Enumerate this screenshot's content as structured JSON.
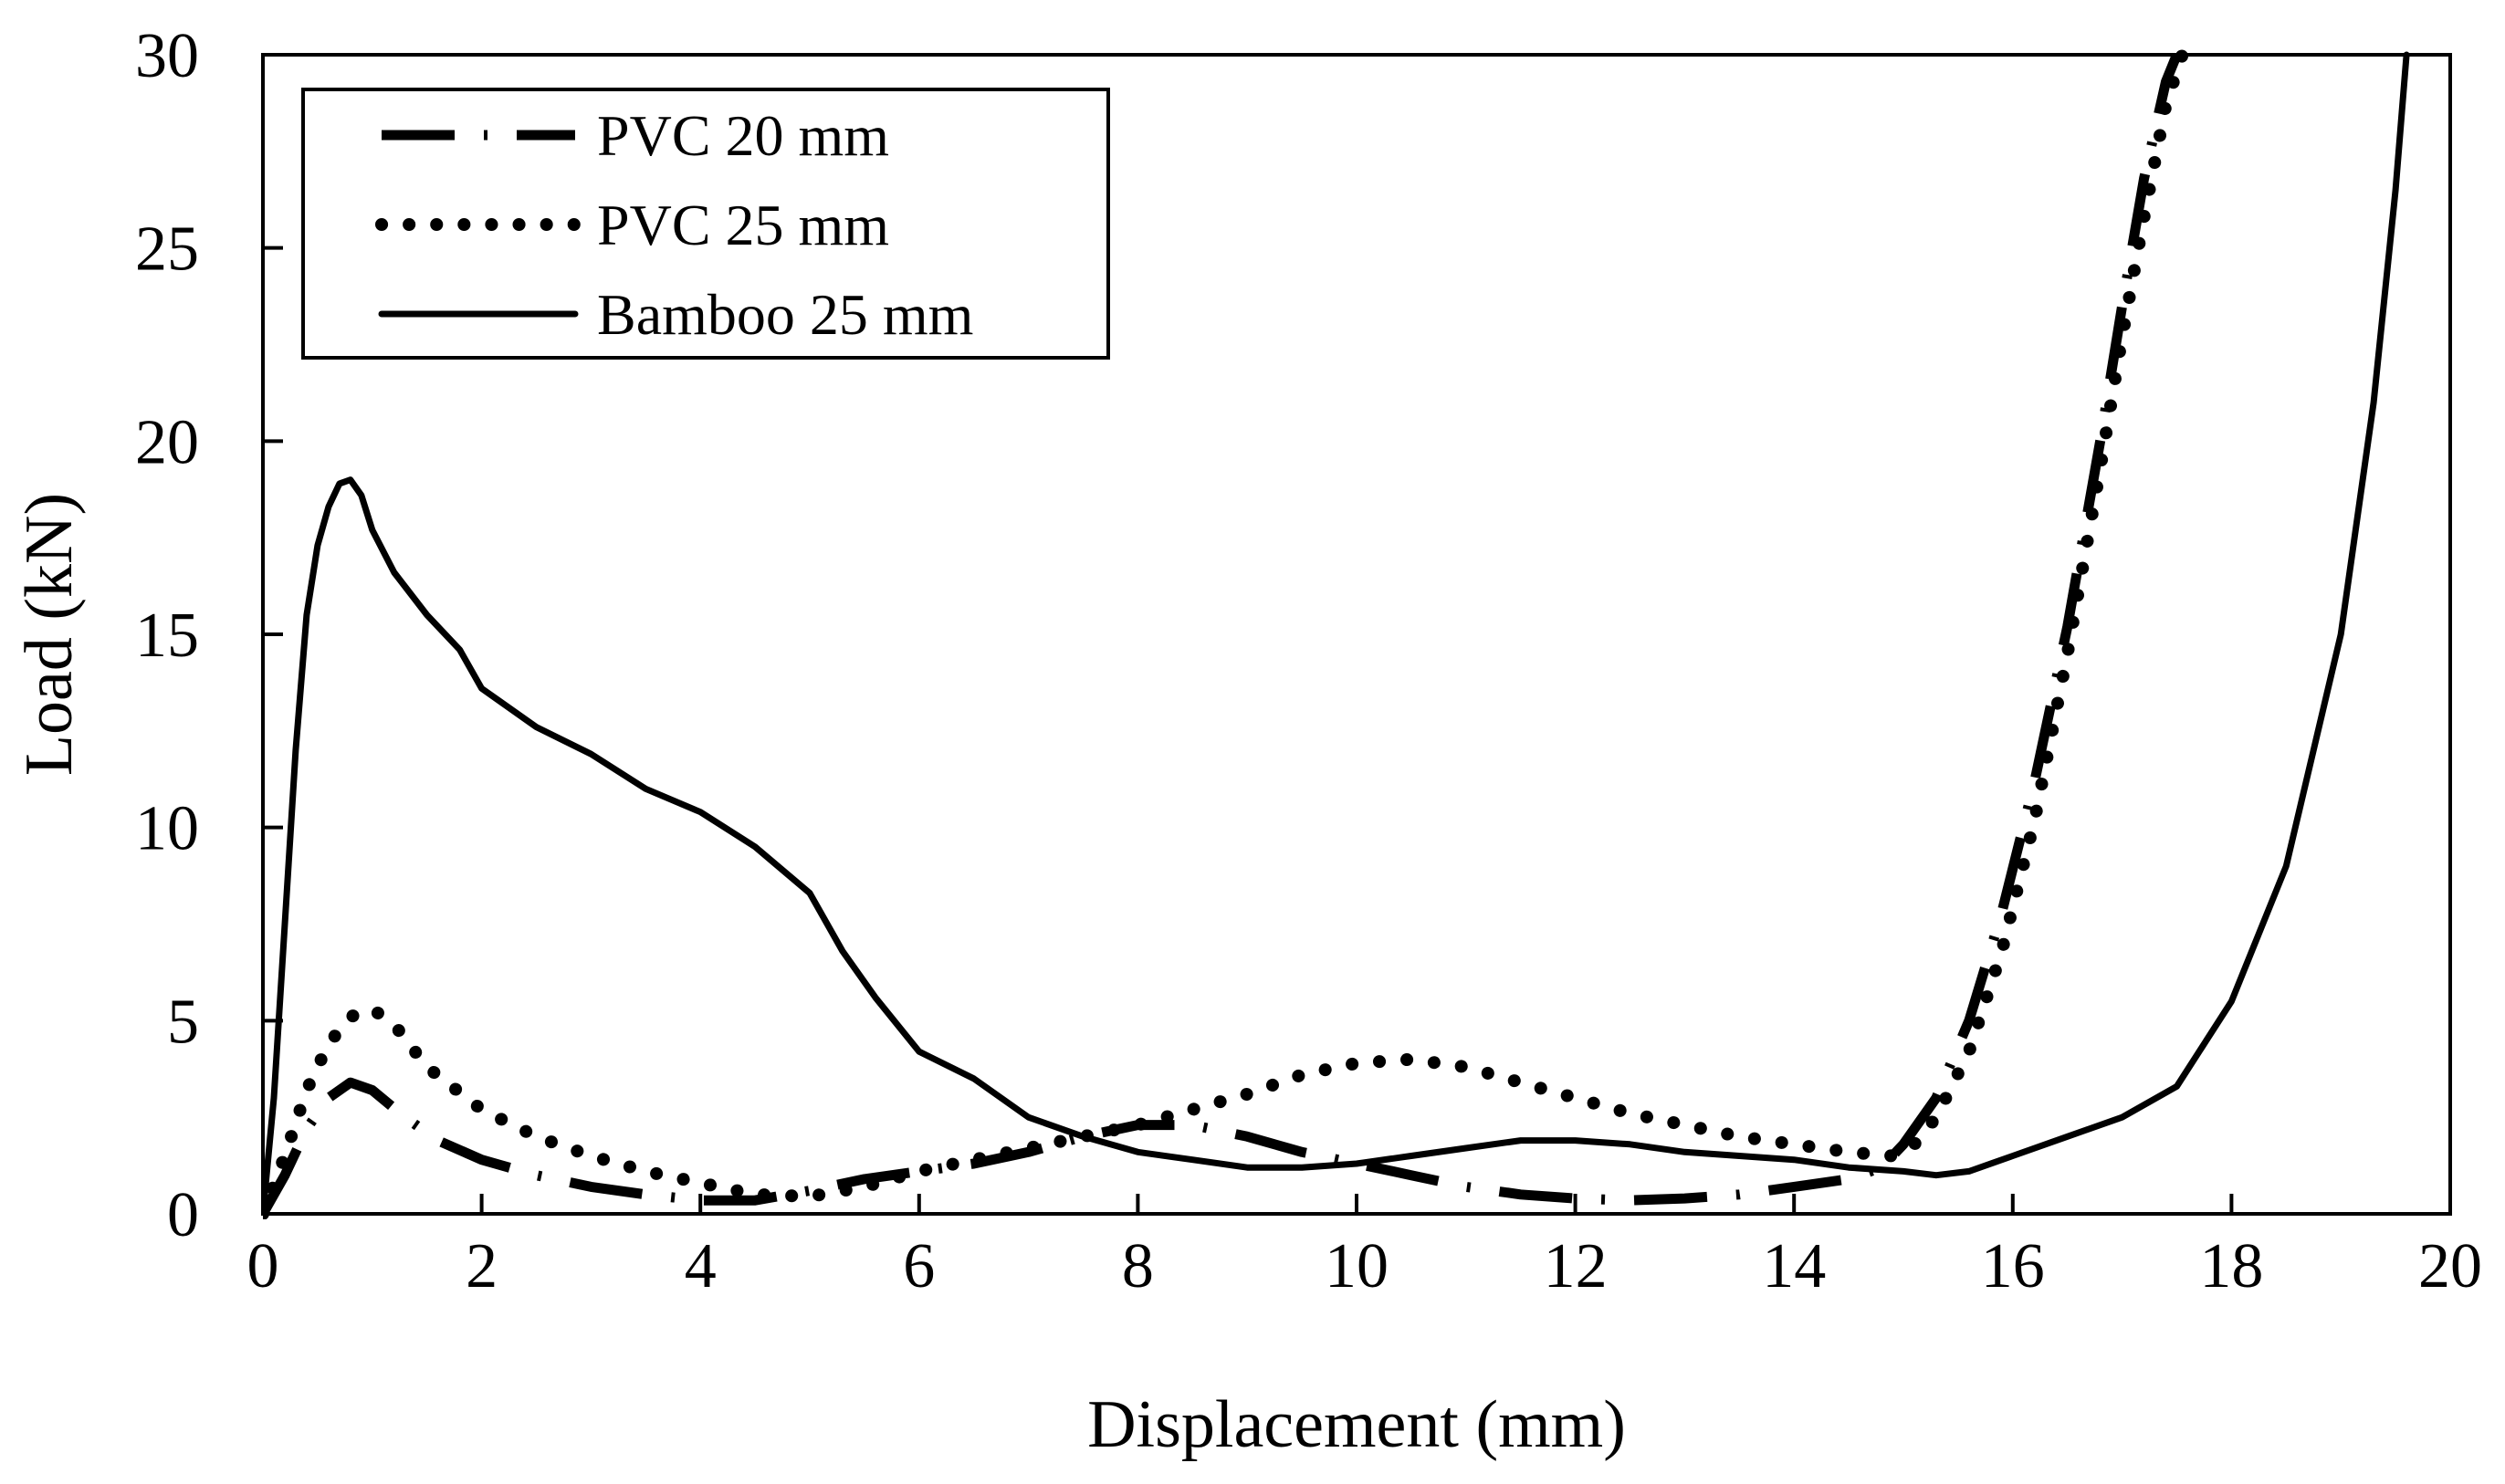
{
  "chart_data": {
    "type": "line",
    "title": "",
    "xlabel": "Displacement (mm)",
    "ylabel": "Load (kN)",
    "xlim": [
      0,
      20
    ],
    "ylim": [
      0,
      30
    ],
    "xticks": [
      0,
      2,
      4,
      6,
      8,
      10,
      12,
      14,
      16,
      18,
      20
    ],
    "yticks": [
      0,
      5,
      10,
      15,
      20,
      25,
      30
    ],
    "grid": false,
    "legend_position": "top-left",
    "series": [
      {
        "name": "PVC 20 mm",
        "style": "dash-dot",
        "x": [
          0,
          0.2,
          0.4,
          0.6,
          0.8,
          1.0,
          1.3,
          1.6,
          2.0,
          2.5,
          3.0,
          3.5,
          4.0,
          4.5,
          5.0,
          5.5,
          6.0,
          6.5,
          7.0,
          7.5,
          8.0,
          8.5,
          9.0,
          9.5,
          10.0,
          10.5,
          11.0,
          11.5,
          12.0,
          12.5,
          13.0,
          13.5,
          14.0,
          14.5,
          14.8,
          15.0,
          15.3,
          15.6,
          15.9,
          16.2,
          16.5,
          16.8,
          17.0,
          17.2,
          17.4,
          17.5
        ],
        "y": [
          0,
          1.0,
          2.2,
          3.0,
          3.4,
          3.2,
          2.5,
          1.9,
          1.4,
          1.0,
          0.7,
          0.5,
          0.35,
          0.35,
          0.6,
          0.9,
          1.1,
          1.3,
          1.6,
          2.0,
          2.3,
          2.3,
          2.0,
          1.6,
          1.3,
          1.0,
          0.7,
          0.5,
          0.4,
          0.35,
          0.4,
          0.5,
          0.7,
          0.9,
          1.2,
          1.8,
          3.0,
          5.0,
          7.8,
          11.2,
          15.2,
          20.0,
          23.5,
          26.8,
          29.3,
          30.0
        ]
      },
      {
        "name": "PVC 25 mm",
        "style": "dotted",
        "x": [
          0,
          0.2,
          0.4,
          0.6,
          0.8,
          1.0,
          1.2,
          1.5,
          2.0,
          2.5,
          3.0,
          3.5,
          4.0,
          4.5,
          5.0,
          5.5,
          6.0,
          6.5,
          7.0,
          7.5,
          8.0,
          8.5,
          9.0,
          9.5,
          10.0,
          10.5,
          11.0,
          11.5,
          12.0,
          12.5,
          13.0,
          13.5,
          14.0,
          14.5,
          14.9,
          15.1,
          15.3,
          15.6,
          15.9,
          16.2,
          16.5,
          16.8,
          17.0,
          17.2,
          17.4,
          17.55
        ],
        "y": [
          0,
          1.5,
          3.2,
          4.4,
          5.1,
          5.3,
          4.9,
          3.8,
          2.7,
          2.0,
          1.5,
          1.1,
          0.8,
          0.5,
          0.45,
          0.7,
          1.1,
          1.4,
          1.7,
          2.0,
          2.3,
          2.7,
          3.1,
          3.6,
          3.9,
          4.0,
          3.8,
          3.4,
          3.0,
          2.6,
          2.3,
          2.0,
          1.8,
          1.6,
          1.5,
          1.8,
          2.5,
          4.2,
          6.8,
          10.2,
          14.5,
          19.3,
          22.7,
          25.8,
          28.7,
          30.0
        ]
      },
      {
        "name": "Bamboo 25 mm",
        "style": "solid",
        "x": [
          0,
          0.1,
          0.2,
          0.3,
          0.4,
          0.5,
          0.6,
          0.7,
          0.8,
          0.9,
          1.0,
          1.2,
          1.5,
          1.8,
          2.0,
          2.5,
          3.0,
          3.5,
          4.0,
          4.5,
          5.0,
          5.3,
          5.6,
          6.0,
          6.5,
          7.0,
          7.5,
          8.0,
          8.5,
          9.0,
          9.5,
          10.0,
          10.5,
          11.0,
          11.5,
          12.0,
          12.5,
          13.0,
          13.5,
          14.0,
          14.5,
          15.0,
          15.3,
          15.6,
          16.0,
          16.5,
          17.0,
          17.5,
          18.0,
          18.5,
          19.0,
          19.3,
          19.5,
          19.6
        ],
        "y": [
          0,
          3.0,
          7.5,
          12.0,
          15.5,
          17.3,
          18.3,
          18.9,
          19.0,
          18.6,
          17.7,
          16.6,
          15.5,
          14.6,
          13.6,
          12.6,
          11.9,
          11.0,
          10.4,
          9.5,
          8.3,
          6.8,
          5.6,
          4.2,
          3.5,
          2.5,
          2.0,
          1.6,
          1.4,
          1.2,
          1.2,
          1.3,
          1.5,
          1.7,
          1.9,
          1.9,
          1.8,
          1.6,
          1.5,
          1.4,
          1.2,
          1.1,
          1.0,
          1.1,
          1.5,
          2.0,
          2.5,
          3.3,
          5.5,
          9.0,
          15.0,
          21.0,
          26.5,
          30.0
        ]
      }
    ]
  }
}
